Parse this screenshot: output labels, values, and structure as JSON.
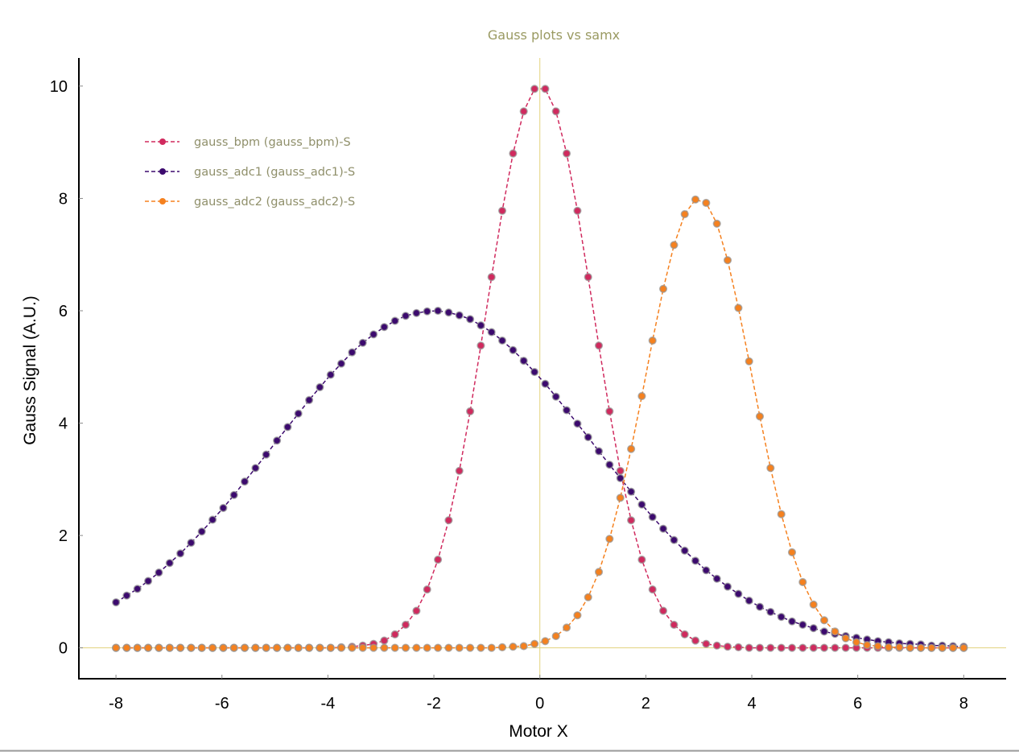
{
  "chart_data": {
    "type": "line",
    "title": "Gauss plots vs samx",
    "xlabel": "Motor X",
    "ylabel": "Gauss Signal (A.U.)",
    "xlim": [
      -8.7,
      8.8
    ],
    "ylim": [
      -0.55,
      10.5
    ],
    "xticks": [
      -8,
      -6,
      -4,
      -2,
      0,
      2,
      4,
      6,
      8
    ],
    "yticks": [
      0,
      2,
      4,
      6,
      8,
      10
    ],
    "grid": false,
    "legend_placement": "top-left",
    "zero_lines_color": "#e3d27e",
    "x": [
      -8.0,
      -7.797,
      -7.595,
      -7.392,
      -7.19,
      -6.987,
      -6.785,
      -6.582,
      -6.38,
      -6.177,
      -5.975,
      -5.772,
      -5.57,
      -5.367,
      -5.165,
      -4.962,
      -4.759,
      -4.557,
      -4.354,
      -4.152,
      -3.949,
      -3.747,
      -3.544,
      -3.342,
      -3.139,
      -2.937,
      -2.734,
      -2.532,
      -2.329,
      -2.127,
      -1.924,
      -1.722,
      -1.519,
      -1.316,
      -1.114,
      -0.911,
      -0.709,
      -0.506,
      -0.304,
      -0.101,
      0.101,
      0.304,
      0.506,
      0.709,
      0.911,
      1.114,
      1.316,
      1.519,
      1.722,
      1.924,
      2.127,
      2.329,
      2.532,
      2.734,
      2.937,
      3.139,
      3.342,
      3.544,
      3.747,
      3.949,
      4.152,
      4.354,
      4.557,
      4.759,
      4.962,
      5.165,
      5.367,
      5.57,
      5.772,
      5.975,
      6.177,
      6.38,
      6.582,
      6.785,
      6.987,
      7.19,
      7.392,
      7.595,
      7.797,
      8.0
    ],
    "series": [
      {
        "name": "gauss_bpm (gauss_bpm)-S",
        "color": "#d02a5e",
        "values": [
          0,
          0,
          0,
          0,
          0,
          0,
          0,
          0,
          0,
          0,
          0,
          0,
          0,
          0,
          0,
          0,
          0,
          0,
          0,
          0,
          0,
          0.01,
          0.02,
          0.04,
          0.07,
          0.13,
          0.24,
          0.41,
          0.66,
          1.04,
          1.57,
          2.27,
          3.15,
          4.21,
          5.38,
          6.6,
          7.78,
          8.8,
          9.55,
          9.95,
          9.95,
          9.55,
          8.8,
          7.78,
          6.6,
          5.38,
          4.21,
          3.15,
          2.27,
          1.57,
          1.04,
          0.66,
          0.41,
          0.24,
          0.13,
          0.07,
          0.04,
          0.02,
          0.01,
          0,
          0,
          0,
          0,
          0,
          0,
          0,
          0,
          0,
          0,
          0,
          0,
          0,
          0,
          0,
          0,
          0,
          0,
          0,
          0,
          0
        ]
      },
      {
        "name": "gauss_adc1 (gauss_adc1)-S",
        "color": "#3c0a6e",
        "values": [
          0.81,
          0.93,
          1.05,
          1.19,
          1.34,
          1.51,
          1.68,
          1.87,
          2.07,
          2.28,
          2.49,
          2.72,
          2.96,
          3.2,
          3.44,
          3.69,
          3.93,
          4.17,
          4.41,
          4.64,
          4.86,
          5.06,
          5.26,
          5.43,
          5.58,
          5.71,
          5.82,
          5.91,
          5.96,
          5.99,
          6.0,
          5.97,
          5.92,
          5.85,
          5.74,
          5.62,
          5.47,
          5.3,
          5.11,
          4.91,
          4.7,
          4.47,
          4.23,
          3.99,
          3.75,
          3.5,
          3.26,
          3.02,
          2.78,
          2.55,
          2.33,
          2.12,
          1.92,
          1.73,
          1.55,
          1.38,
          1.23,
          1.09,
          0.96,
          0.84,
          0.73,
          0.64,
          0.55,
          0.47,
          0.41,
          0.35,
          0.29,
          0.25,
          0.21,
          0.18,
          0.15,
          0.12,
          0.1,
          0.08,
          0.07,
          0.06,
          0.04,
          0.04,
          0.03,
          0.02
        ]
      },
      {
        "name": "gauss_adc2 (gauss_adc2)-S",
        "color": "#f5811f",
        "values": [
          0,
          0,
          0,
          0,
          0,
          0,
          0,
          0,
          0,
          0,
          0,
          0,
          0,
          0,
          0,
          0,
          0,
          0,
          0,
          0,
          0,
          0,
          0,
          0,
          0,
          0,
          0,
          0,
          0,
          0,
          0,
          0,
          0,
          0,
          0,
          0,
          0.01,
          0.02,
          0.03,
          0.07,
          0.12,
          0.21,
          0.36,
          0.58,
          0.9,
          1.35,
          1.94,
          2.67,
          3.54,
          4.48,
          5.47,
          6.39,
          7.17,
          7.72,
          7.98,
          7.92,
          7.55,
          6.9,
          6.05,
          5.1,
          4.12,
          3.2,
          2.38,
          1.7,
          1.17,
          0.77,
          0.49,
          0.29,
          0.17,
          0.1,
          0.05,
          0.03,
          0.01,
          0.01,
          0,
          0,
          0,
          0,
          0,
          0
        ]
      }
    ]
  }
}
